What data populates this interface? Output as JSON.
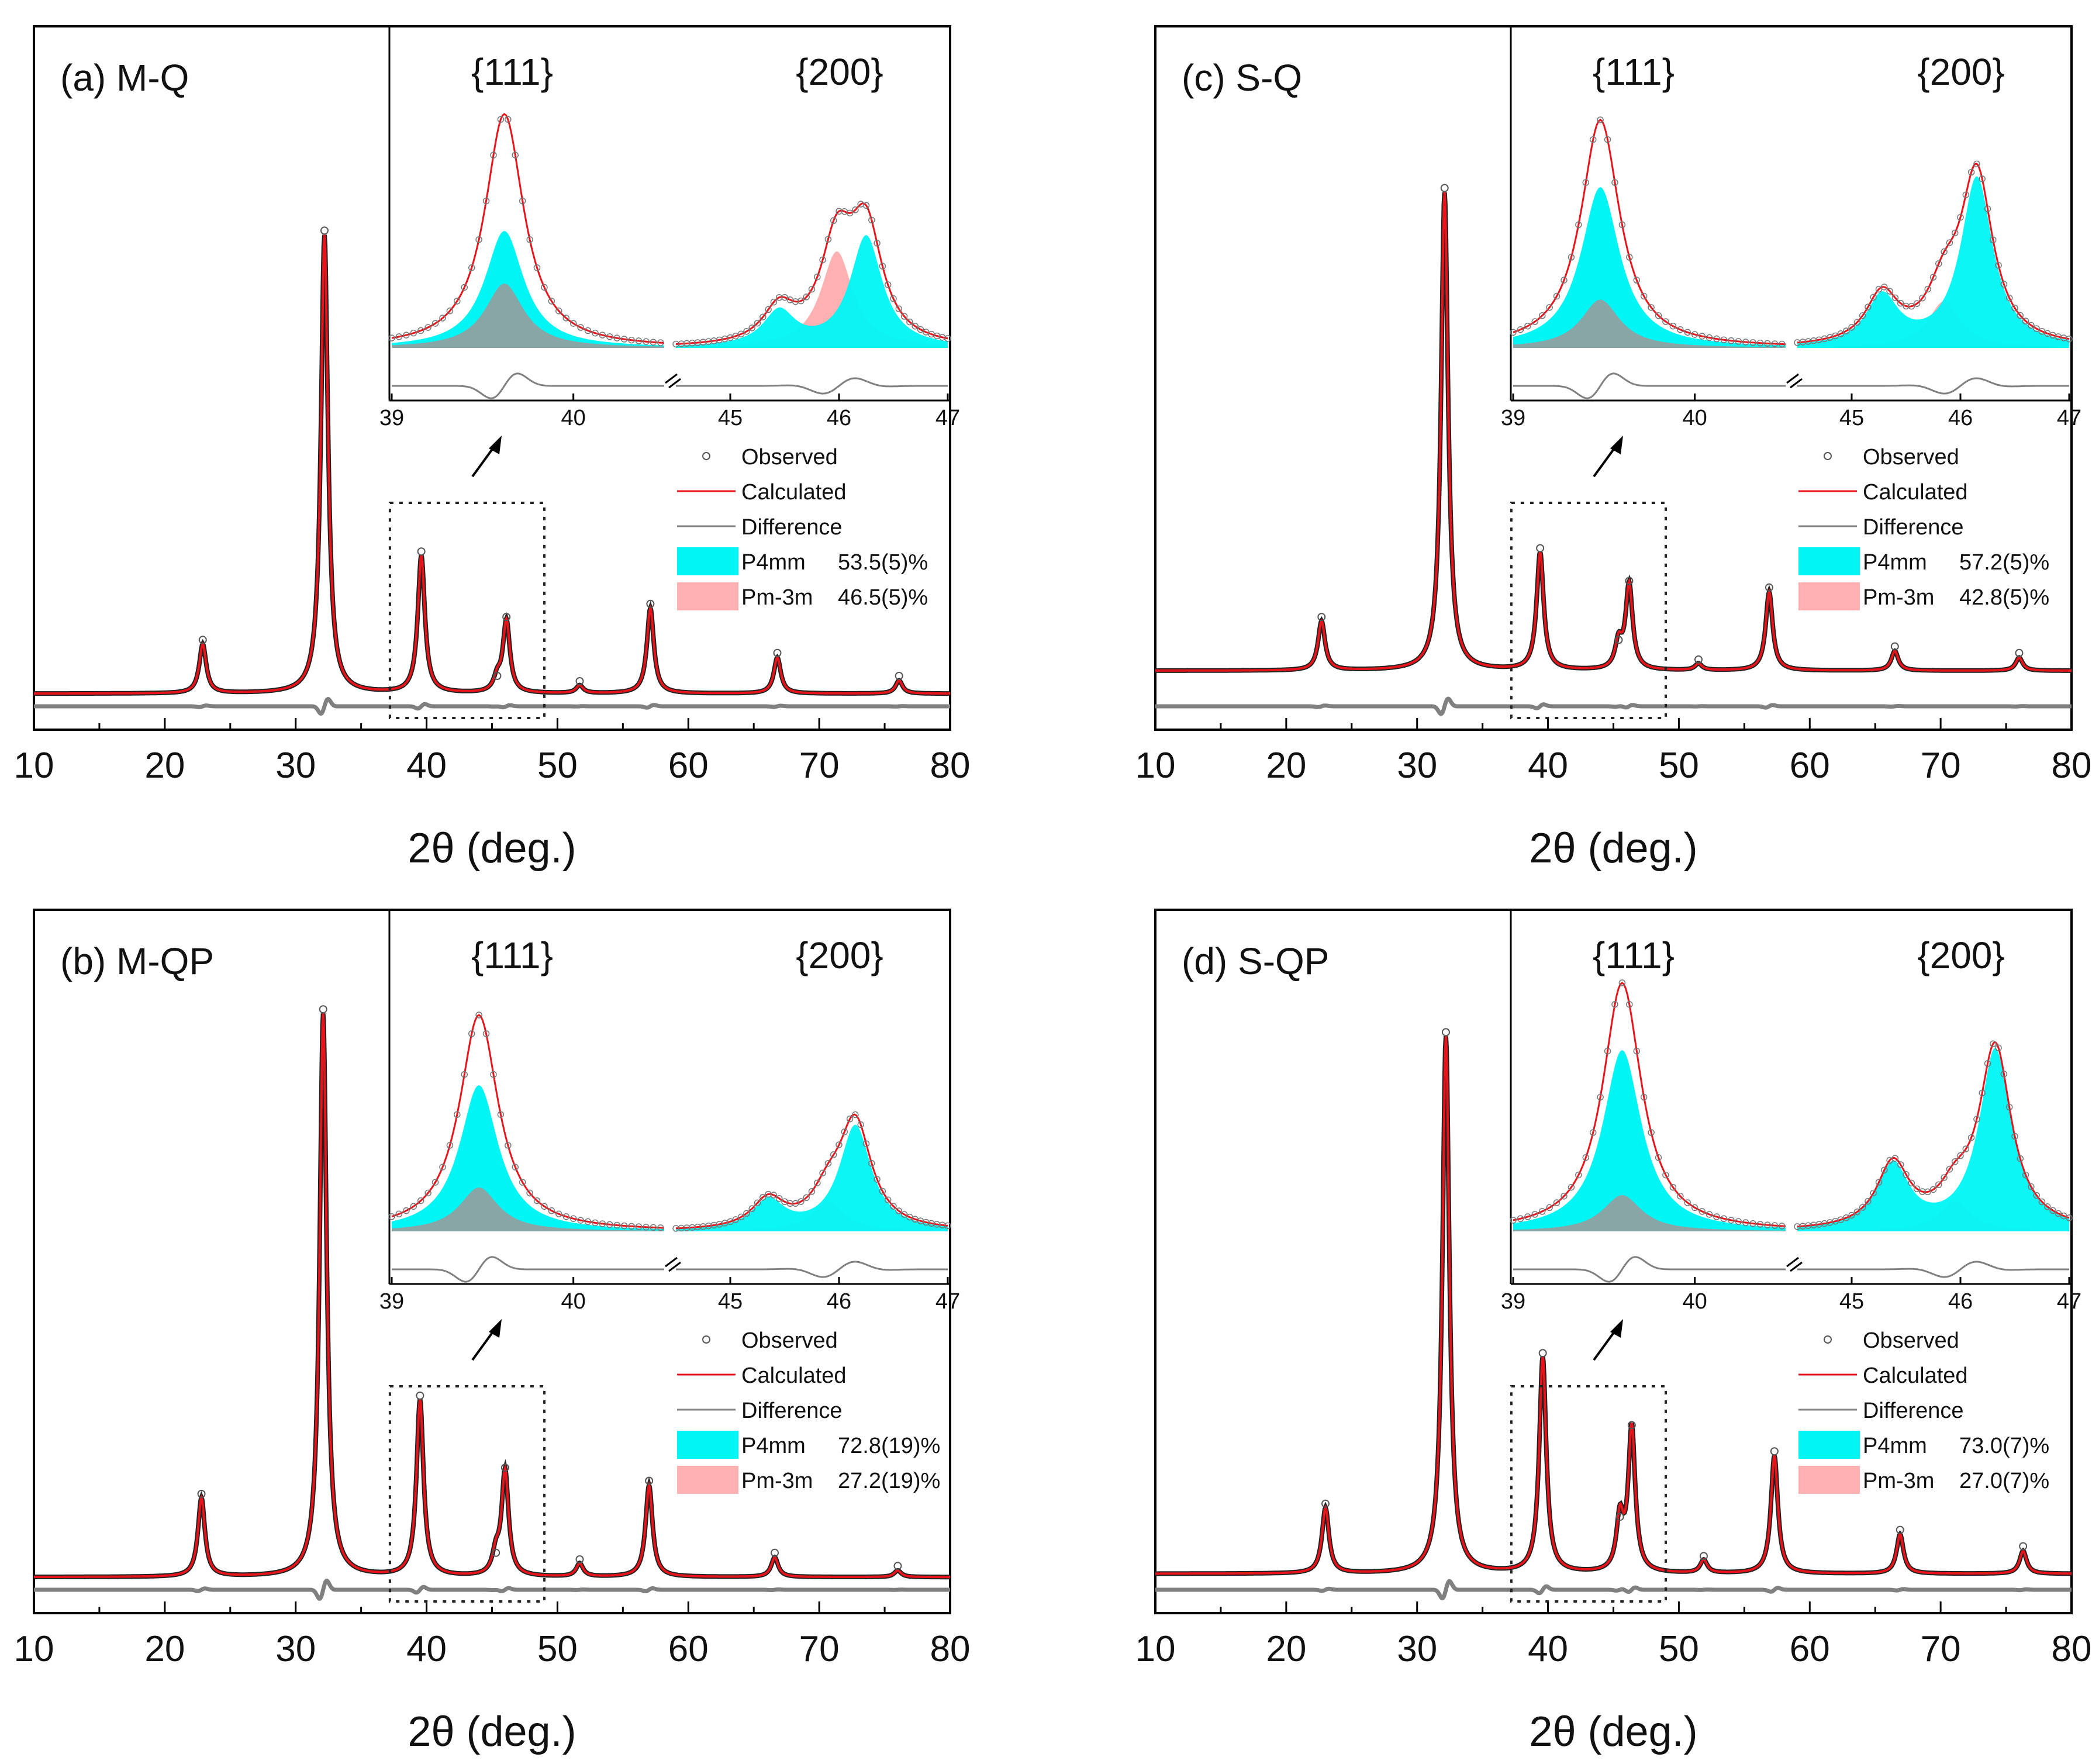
{
  "figure": {
    "x_axis_label": "2θ (deg.)",
    "legend_labels": {
      "observed": "Observed",
      "calculated": "Calculated",
      "difference": "Difference"
    },
    "colors": {
      "observed": "#555555",
      "calculated": "#e8141b",
      "difference": "#808080",
      "p4mm": "#00f5f5",
      "pm3m": "#ffb0b0",
      "overlap": "#88a6a6"
    }
  },
  "chart_data": [
    {
      "type": "line",
      "panel_label": "(a) M-Q",
      "xlabel": "2θ (deg.)",
      "ylabel": "",
      "xlim": [
        10,
        80
      ],
      "x_ticks": [
        10,
        20,
        30,
        40,
        50,
        60,
        70,
        80
      ],
      "baseline": 0.055,
      "peaks": [
        {
          "x": 22.9,
          "h": 0.075
        },
        {
          "x": 32.2,
          "h": 0.7
        },
        {
          "x": 39.6,
          "h": 0.21
        },
        {
          "x": 45.4,
          "h": 0.02
        },
        {
          "x": 46.1,
          "h": 0.11
        },
        {
          "x": 51.7,
          "h": 0.012
        },
        {
          "x": 57.1,
          "h": 0.13
        },
        {
          "x": 66.8,
          "h": 0.055
        },
        {
          "x": 76.1,
          "h": 0.02
        }
      ],
      "phases": [
        {
          "name": "P4mm",
          "fraction": "53.5(5)%"
        },
        {
          "name": "Pm-3m",
          "fraction": "46.5(5)%"
        }
      ],
      "inset": {
        "region_labels": [
          "{111}",
          "{200}"
        ],
        "left_ticks": [
          "39",
          "40"
        ],
        "right_ticks": [
          "45",
          "46",
          "47"
        ],
        "peak_111": {
          "center": 39.62,
          "height": 0.8,
          "p4mm": 0.4,
          "pm3m_share": 0.55
        },
        "peak_200": {
          "p4mm_a": {
            "x": 45.45,
            "h": 0.12
          },
          "p4mm_b": {
            "x": 46.25,
            "h": 0.38
          },
          "pm3m": {
            "x": 45.98,
            "h": 0.33
          }
        }
      }
    },
    {
      "type": "line",
      "panel_label": "(b) M-QP",
      "xlabel": "2θ (deg.)",
      "ylabel": "",
      "xlim": [
        10,
        80
      ],
      "x_ticks": [
        10,
        20,
        30,
        40,
        50,
        60,
        70,
        80
      ],
      "baseline": 0.055,
      "peaks": [
        {
          "x": 22.8,
          "h": 0.12
        },
        {
          "x": 32.1,
          "h": 0.86
        },
        {
          "x": 39.5,
          "h": 0.27
        },
        {
          "x": 45.3,
          "h": 0.03
        },
        {
          "x": 46.0,
          "h": 0.16
        },
        {
          "x": 51.7,
          "h": 0.02
        },
        {
          "x": 57.0,
          "h": 0.14
        },
        {
          "x": 66.6,
          "h": 0.03
        },
        {
          "x": 76.0,
          "h": 0.01
        }
      ],
      "phases": [
        {
          "name": "P4mm",
          "fraction": "72.8(19)%"
        },
        {
          "name": "Pm-3m",
          "fraction": "27.2(19)%"
        }
      ],
      "inset": {
        "region_labels": [
          "{111}",
          "{200}"
        ],
        "left_ticks": [
          "39",
          "40"
        ],
        "right_ticks": [
          "45",
          "46",
          "47"
        ],
        "peak_111": {
          "center": 39.48,
          "height": 0.74,
          "p4mm": 0.5,
          "pm3m_share": 0.3
        },
        "peak_200": {
          "p4mm_a": {
            "x": 45.35,
            "h": 0.1
          },
          "p4mm_b": {
            "x": 46.15,
            "h": 0.36
          },
          "pm3m": {
            "x": 45.9,
            "h": 0.1
          }
        }
      }
    },
    {
      "type": "line",
      "panel_label": "(c) S-Q",
      "xlabel": "2θ (deg.)",
      "ylabel": "",
      "xlim": [
        10,
        80
      ],
      "x_ticks": [
        10,
        20,
        30,
        40,
        50,
        60,
        70,
        80
      ],
      "baseline": 0.09,
      "peaks": [
        {
          "x": 22.7,
          "h": 0.075
        },
        {
          "x": 32.1,
          "h": 0.73
        },
        {
          "x": 39.4,
          "h": 0.18
        },
        {
          "x": 45.4,
          "h": 0.04
        },
        {
          "x": 46.2,
          "h": 0.13
        },
        {
          "x": 51.5,
          "h": 0.01
        },
        {
          "x": 56.9,
          "h": 0.12
        },
        {
          "x": 66.5,
          "h": 0.03
        },
        {
          "x": 76.0,
          "h": 0.02
        }
      ],
      "phases": [
        {
          "name": "P4mm",
          "fraction": "57.2(5)%"
        },
        {
          "name": "Pm-3m",
          "fraction": "42.8(5)%"
        }
      ],
      "inset": {
        "region_labels": [
          "{111}",
          "{200}"
        ],
        "left_ticks": [
          "39",
          "40"
        ],
        "right_ticks": [
          "45",
          "46",
          "47"
        ],
        "peak_111": {
          "center": 39.48,
          "height": 0.78,
          "p4mm": 0.55,
          "pm3m_share": 0.3
        },
        "peak_200": {
          "p4mm_a": {
            "x": 45.28,
            "h": 0.17
          },
          "p4mm_b": {
            "x": 46.15,
            "h": 0.58
          },
          "pm3m": {
            "x": 45.85,
            "h": 0.16
          }
        }
      }
    },
    {
      "type": "line",
      "panel_label": "(d) S-QP",
      "xlabel": "2θ (deg.)",
      "ylabel": "",
      "xlim": [
        10,
        80
      ],
      "x_ticks": [
        10,
        20,
        30,
        40,
        50,
        60,
        70,
        80
      ],
      "baseline": 0.06,
      "peaks": [
        {
          "x": 23.0,
          "h": 0.1
        },
        {
          "x": 32.2,
          "h": 0.82
        },
        {
          "x": 39.6,
          "h": 0.33
        },
        {
          "x": 45.5,
          "h": 0.08
        },
        {
          "x": 46.4,
          "h": 0.22
        },
        {
          "x": 51.9,
          "h": 0.02
        },
        {
          "x": 57.3,
          "h": 0.18
        },
        {
          "x": 66.9,
          "h": 0.06
        },
        {
          "x": 76.3,
          "h": 0.035
        }
      ],
      "phases": [
        {
          "name": "P4mm",
          "fraction": "73.0(7)%"
        },
        {
          "name": "Pm-3m",
          "fraction": "27.0(7)%"
        }
      ],
      "inset": {
        "region_labels": [
          "{111}",
          "{200}"
        ],
        "left_ticks": [
          "39",
          "40"
        ],
        "right_ticks": [
          "45",
          "46",
          "47"
        ],
        "peak_111": {
          "center": 39.6,
          "height": 0.85,
          "p4mm": 0.62,
          "pm3m_share": 0.2
        },
        "peak_200": {
          "p4mm_a": {
            "x": 45.38,
            "h": 0.22
          },
          "p4mm_b": {
            "x": 46.32,
            "h": 0.62
          },
          "pm3m": {
            "x": 45.95,
            "h": 0.1
          }
        }
      }
    }
  ]
}
